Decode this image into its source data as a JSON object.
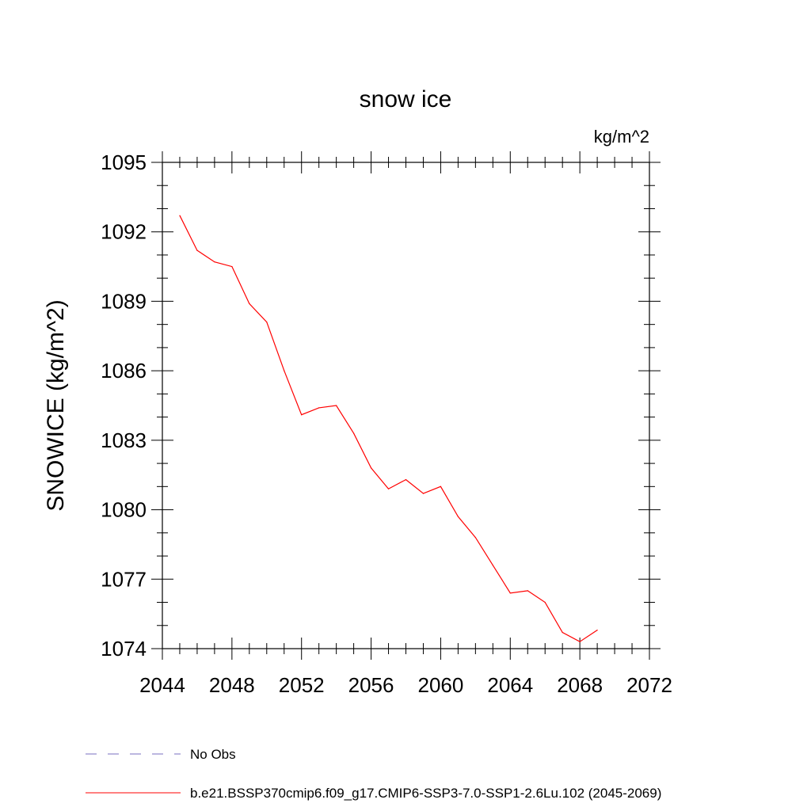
{
  "chart_data": {
    "type": "line",
    "title": "snow ice",
    "units": "kg/m^2",
    "ylabel": "SNOWICE  (kg/m^2)",
    "xlabel": "",
    "xlim": [
      2044,
      2072
    ],
    "ylim": [
      1074,
      1095
    ],
    "xticks": [
      2044,
      2048,
      2052,
      2056,
      2060,
      2064,
      2068,
      2072
    ],
    "yticks": [
      1074,
      1077,
      1080,
      1083,
      1086,
      1089,
      1092,
      1095
    ],
    "grid": false,
    "legend_position": "bottom",
    "series": [
      {
        "name": "b.e21.BSSP370cmip6.f09_g17.CMIP6-SSP3-7.0-SSP1-2.6Lu.102 (2045-2069)",
        "color": "#ff0000",
        "style": "solid",
        "x": [
          2045,
          2046,
          2047,
          2048,
          2049,
          2050,
          2051,
          2052,
          2053,
          2054,
          2055,
          2056,
          2057,
          2058,
          2059,
          2060,
          2061,
          2062,
          2063,
          2064,
          2065,
          2066,
          2067,
          2068,
          2069
        ],
        "y": [
          1092.7,
          1091.2,
          1090.7,
          1090.5,
          1088.9,
          1088.1,
          1086.0,
          1084.1,
          1084.4,
          1084.5,
          1083.3,
          1081.8,
          1080.9,
          1081.3,
          1080.7,
          1081.0,
          1079.7,
          1078.8,
          1077.6,
          1076.4,
          1076.5,
          1076.0,
          1074.7,
          1074.3,
          1074.8
        ]
      }
    ],
    "legend": [
      {
        "label": "No Obs",
        "color": "#7a6fc0",
        "style": "dashed"
      },
      {
        "label": "b.e21.BSSP370cmip6.f09_g17.CMIP6-SSP3-7.0-SSP1-2.6Lu.102 (2045-2069)",
        "color": "#ff0000",
        "style": "solid"
      }
    ]
  }
}
